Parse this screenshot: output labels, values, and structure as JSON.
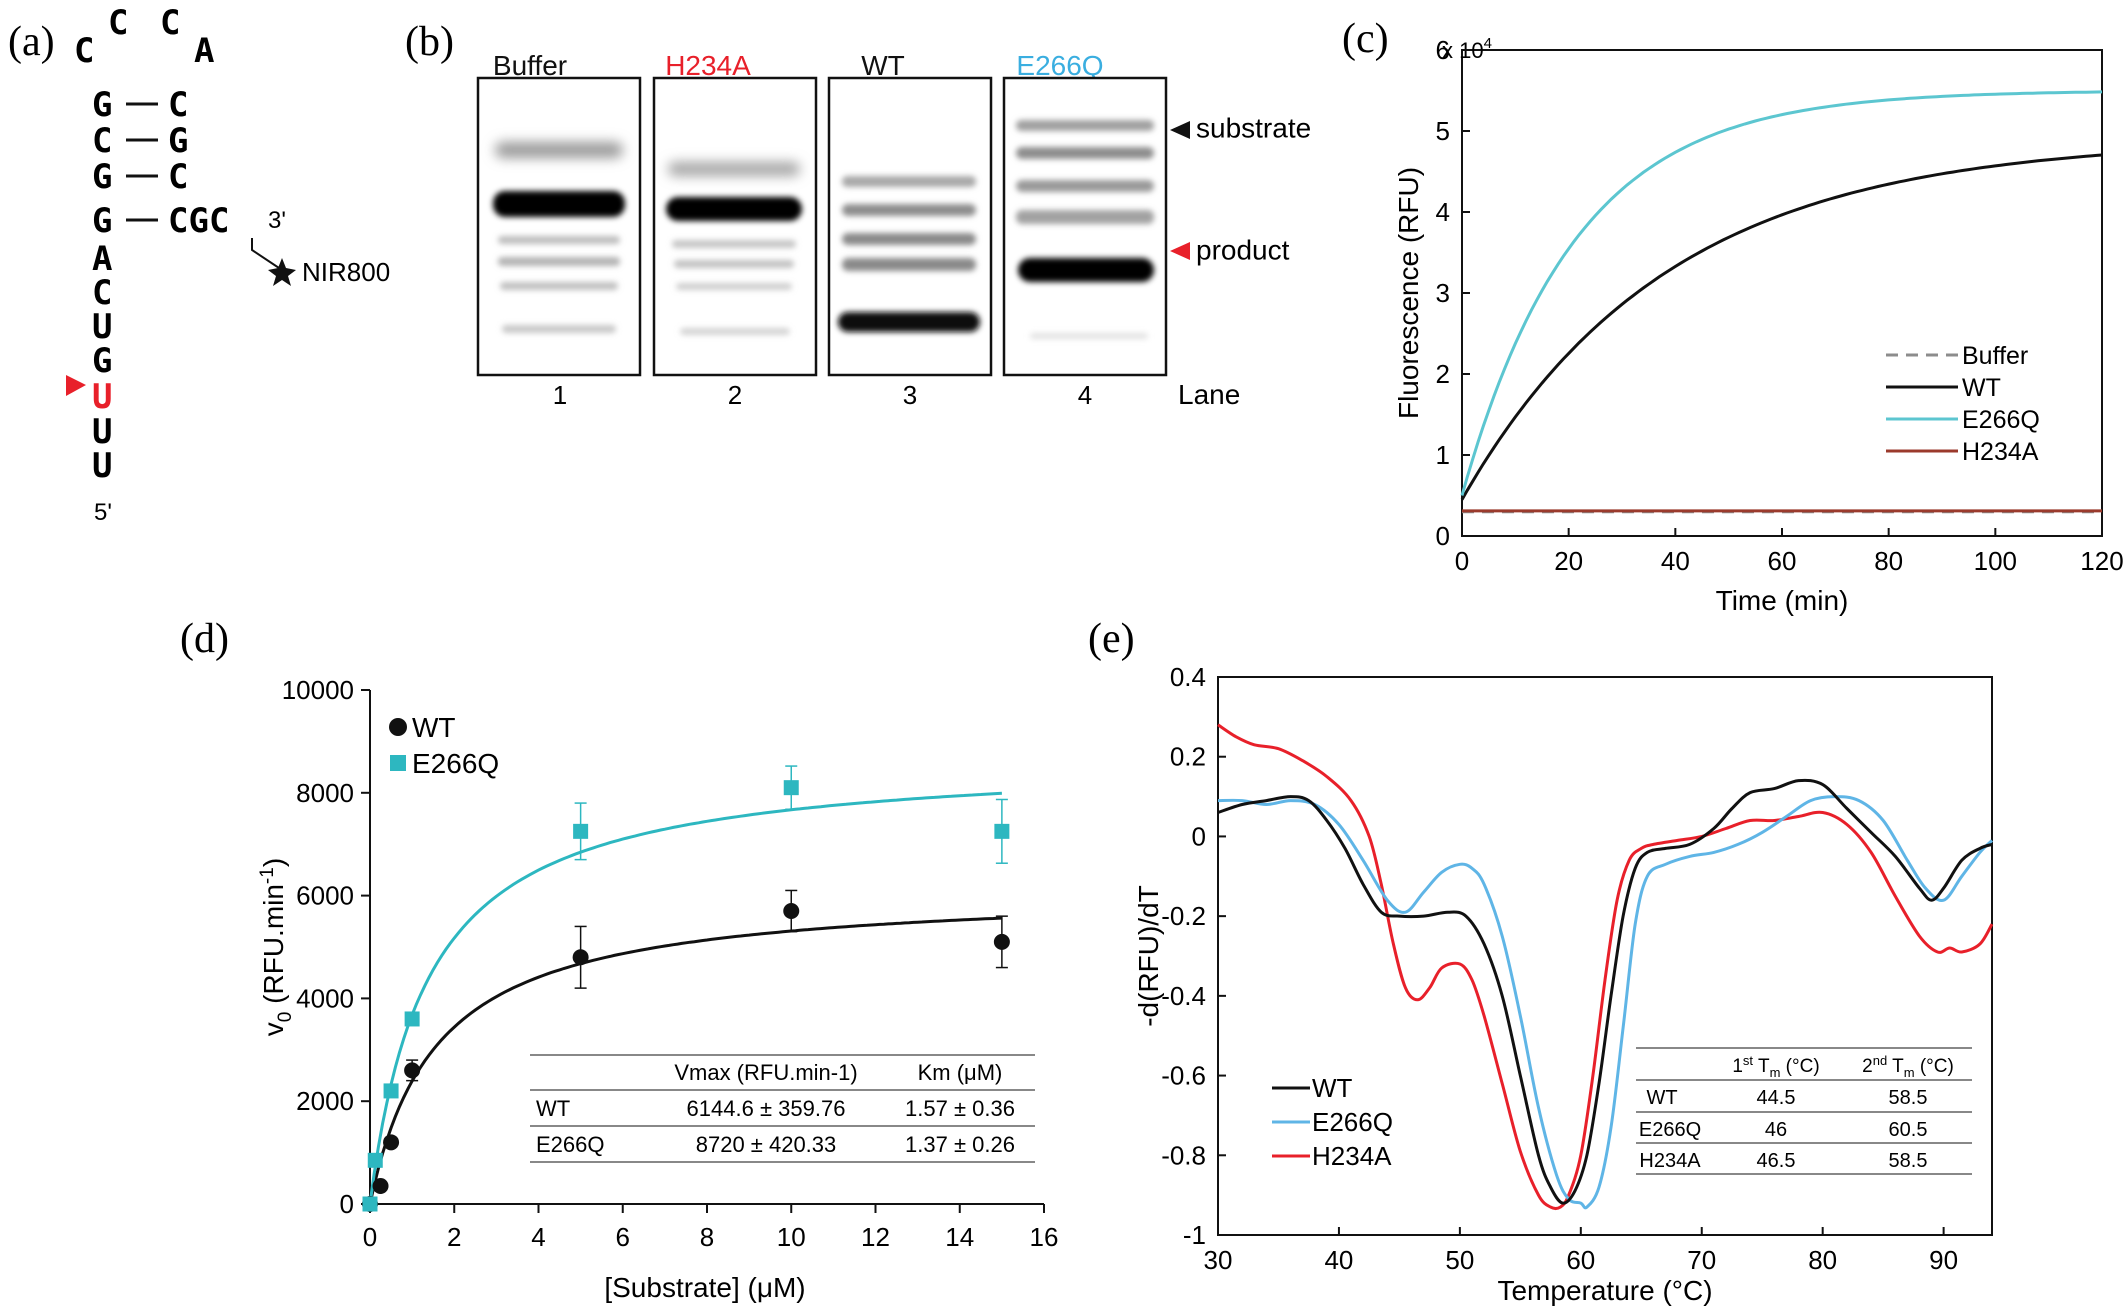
{
  "colors": {
    "black": "#111111",
    "cyan": "#5cc6d0",
    "teal": "#2db7c0",
    "red": "#e8202a",
    "brown": "#9b3a2c",
    "gray": "#8c8c8c",
    "lightblue": "#5fb5e6",
    "lane_red": "#e8202a",
    "lane_blue": "#3aaee0"
  },
  "panel_a": {
    "letter": "(a)",
    "loop": [
      "C",
      "C",
      "C",
      "A"
    ],
    "stem_left": [
      "G",
      "C",
      "G",
      "G"
    ],
    "stem_right": [
      "C",
      "G",
      "C",
      "CGC"
    ],
    "tail": [
      "A",
      "C",
      "U",
      "G",
      "U",
      "U",
      "U"
    ],
    "three_prime": "3'",
    "five_prime": "5'",
    "dye": "NIR800",
    "star_icon": "star-icon",
    "cleavage_marker": "red-triangle-icon",
    "cleaved_base": "U"
  },
  "panel_b": {
    "letter": "(b)",
    "lanes": [
      {
        "label": "Buffer",
        "color": "#111111",
        "number": "1"
      },
      {
        "label": "H234A",
        "color": "#e8202a",
        "number": "2"
      },
      {
        "label": "WT",
        "color": "#111111",
        "number": "3"
      },
      {
        "label": "E266Q",
        "color": "#3aaee0",
        "number": "4"
      }
    ],
    "substrate_label": "substrate",
    "product_label": "product",
    "lane_axis_label": "Lane"
  },
  "chart_data": [
    {
      "panel": "(c)",
      "type": "line",
      "xlabel": "Time (min)",
      "ylabel": "Fluorescence (RFU)",
      "multiplier": "x 10",
      "multiplier_exp": "4",
      "xlim": [
        0,
        120
      ],
      "ylim": [
        0,
        6
      ],
      "xticks": [
        0,
        20,
        40,
        60,
        80,
        100,
        120
      ],
      "yticks": [
        0,
        1,
        2,
        3,
        4,
        5,
        6
      ],
      "grid": false,
      "legend_position": "bottom-right",
      "series": [
        {
          "name": "Buffer",
          "style": "dashed",
          "color": "#8c8c8c",
          "model": "flat",
          "plateau": 0.3
        },
        {
          "name": "WT",
          "color": "#111111",
          "model": "exp",
          "y0": 0.45,
          "ymax": 4.9,
          "k": 0.026
        },
        {
          "name": "E266Q",
          "color": "#5cc6d0",
          "model": "exp",
          "y0": 0.5,
          "ymax": 5.5,
          "k": 0.047
        },
        {
          "name": "H234A",
          "color": "#9b3a2c",
          "model": "flat",
          "plateau": 0.31
        }
      ]
    },
    {
      "panel": "(d)",
      "type": "scatter",
      "xlabel": "[Substrate] (μM)",
      "ylabel_main": "v",
      "ylabel_sub": "0",
      "ylabel_rest": " (RFU.min",
      "ylabel_sup": "-1",
      "ylabel_close": ")",
      "xlim": [
        0,
        16
      ],
      "ylim": [
        0,
        10000
      ],
      "xticks": [
        0,
        2,
        4,
        6,
        8,
        10,
        12,
        14,
        16
      ],
      "yticks": [
        0,
        2000,
        4000,
        6000,
        8000,
        10000
      ],
      "grid": false,
      "legend_position": "top-left",
      "series": [
        {
          "name": "WT",
          "color": "#111111",
          "marker": "circle",
          "x": [
            0,
            0.25,
            0.5,
            1,
            5,
            10,
            15
          ],
          "y": [
            0,
            350,
            1200,
            2600,
            4800,
            5700,
            5100
          ],
          "err": [
            0,
            0,
            0,
            200,
            600,
            400,
            500
          ],
          "fit": {
            "vmax": 6144.6,
            "km": 1.57
          }
        },
        {
          "name": "E266Q",
          "color": "#2db7c0",
          "marker": "square",
          "x": [
            0,
            0.125,
            0.5,
            1,
            5,
            10,
            15
          ],
          "y": [
            0,
            850,
            2200,
            3600,
            7250,
            8100,
            7250
          ],
          "err": [
            0,
            0,
            0,
            0,
            550,
            420,
            620
          ],
          "fit": {
            "vmax": 8720,
            "km": 1.37
          }
        }
      ],
      "table": {
        "headers": [
          "",
          "Vmax (RFU.min-1)",
          "Km (μM)"
        ],
        "rows": [
          [
            "WT",
            "6144.6 ±  359.76",
            "1.57 ±  0.36"
          ],
          [
            "E266Q",
            "8720 ± 420.33",
            "1.37 ±  0.26"
          ]
        ]
      }
    },
    {
      "panel": "(e)",
      "type": "line",
      "xlabel": "Temperature (°C)",
      "ylabel": "-d(RFU)/dT",
      "xlim": [
        30,
        94
      ],
      "ylim": [
        -1,
        0.4
      ],
      "xticks": [
        30,
        40,
        50,
        60,
        70,
        80,
        90
      ],
      "yticks": [
        0.4,
        0.2,
        0,
        -0.2,
        -0.4,
        -0.6,
        -0.8,
        -1
      ],
      "grid": false,
      "legend_position": "bottom-left",
      "series": [
        {
          "name": "WT",
          "color": "#111111",
          "x": [
            30,
            32,
            34,
            36,
            37.5,
            39,
            40.5,
            42,
            43.5,
            45,
            47,
            49,
            50.5,
            52,
            53.5,
            55,
            56.5,
            57.5,
            58.5,
            59.5,
            60.5,
            61.5,
            62.5,
            63.5,
            64.5,
            65.5,
            67,
            69,
            71,
            72.5,
            74,
            76,
            78,
            80,
            82,
            84,
            86,
            88,
            89,
            90,
            91.5,
            93,
            94
          ],
          "y": [
            0.06,
            0.08,
            0.09,
            0.1,
            0.09,
            0.04,
            -0.03,
            -0.12,
            -0.19,
            -0.2,
            -0.2,
            -0.19,
            -0.2,
            -0.27,
            -0.4,
            -0.6,
            -0.8,
            -0.88,
            -0.92,
            -0.89,
            -0.8,
            -0.62,
            -0.4,
            -0.2,
            -0.08,
            -0.04,
            -0.03,
            -0.02,
            0.02,
            0.07,
            0.11,
            0.12,
            0.14,
            0.13,
            0.07,
            0.01,
            -0.05,
            -0.13,
            -0.16,
            -0.13,
            -0.06,
            -0.03,
            -0.02
          ]
        },
        {
          "name": "E266Q",
          "color": "#5fb5e6",
          "x": [
            30,
            32,
            34,
            36,
            38,
            40,
            42,
            44,
            45.5,
            47,
            48.5,
            50,
            51,
            52,
            53.5,
            55,
            56.5,
            58,
            59,
            60,
            60.5,
            61.5,
            62.5,
            63.5,
            64.5,
            65.5,
            67,
            69,
            71,
            73,
            75,
            77,
            79,
            81,
            83,
            85,
            87,
            88.5,
            90,
            91.5,
            93,
            94
          ],
          "y": [
            0.09,
            0.09,
            0.08,
            0.09,
            0.08,
            0.03,
            -0.06,
            -0.16,
            -0.19,
            -0.14,
            -0.09,
            -0.07,
            -0.08,
            -0.12,
            -0.25,
            -0.45,
            -0.68,
            -0.85,
            -0.91,
            -0.92,
            -0.93,
            -0.88,
            -0.73,
            -0.48,
            -0.22,
            -0.1,
            -0.07,
            -0.05,
            -0.04,
            -0.02,
            0.01,
            0.05,
            0.09,
            0.1,
            0.09,
            0.04,
            -0.06,
            -0.13,
            -0.16,
            -0.1,
            -0.04,
            -0.01
          ]
        },
        {
          "name": "H234A",
          "color": "#e8202a",
          "x": [
            30,
            31.5,
            33,
            35,
            37,
            39,
            41,
            42.5,
            43.5,
            44.5,
            45.5,
            46.5,
            47.5,
            48.5,
            50,
            51,
            52,
            53.5,
            55,
            56.5,
            57.5,
            58.3,
            59,
            60,
            61,
            62,
            63,
            64,
            65,
            66,
            68,
            70,
            72,
            74,
            76,
            78,
            80,
            82,
            84,
            86,
            88,
            89.5,
            90.5,
            91.5,
            93,
            94
          ],
          "y": [
            0.28,
            0.25,
            0.23,
            0.22,
            0.19,
            0.15,
            0.09,
            0.0,
            -0.12,
            -0.27,
            -0.38,
            -0.41,
            -0.38,
            -0.33,
            -0.32,
            -0.36,
            -0.45,
            -0.62,
            -0.79,
            -0.9,
            -0.93,
            -0.93,
            -0.9,
            -0.8,
            -0.6,
            -0.36,
            -0.16,
            -0.06,
            -0.03,
            -0.02,
            -0.01,
            0.0,
            0.02,
            0.04,
            0.04,
            0.05,
            0.06,
            0.03,
            -0.04,
            -0.15,
            -0.25,
            -0.29,
            -0.28,
            -0.29,
            -0.27,
            -0.22
          ]
        }
      ],
      "table": {
        "headers": [
          "",
          "1st T_m (°C)",
          "2nd T_m (°C)"
        ],
        "header_parts": [
          [
            "1",
            "st",
            " T",
            "m",
            " (°C)"
          ],
          [
            "2",
            "nd",
            " T",
            "m",
            " (°C)"
          ]
        ],
        "rows": [
          [
            "WT",
            "44.5",
            "58.5"
          ],
          [
            "E266Q",
            "46",
            "60.5"
          ],
          [
            "H234A",
            "46.5",
            "58.5"
          ]
        ]
      }
    }
  ]
}
